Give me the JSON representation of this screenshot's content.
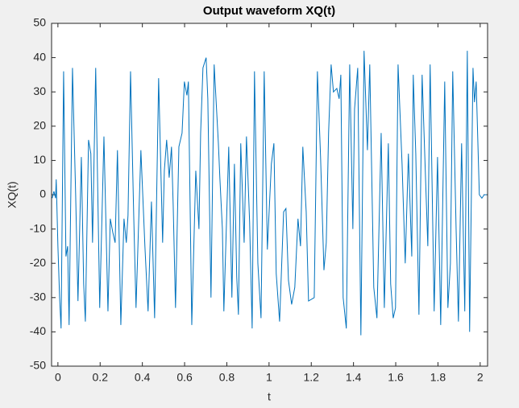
{
  "chart_data": {
    "type": "line",
    "title": "Output waveform XQ(t)",
    "x_label": "t",
    "y_label": "XQ(t)",
    "xlim": [
      -0.03,
      2.035
    ],
    "ylim": [
      -50,
      50
    ],
    "xticks": [
      0,
      0.2,
      0.4,
      0.6,
      0.8,
      1,
      1.2,
      1.4,
      1.6,
      1.8,
      2
    ],
    "yticks": [
      -50,
      -40,
      -30,
      -20,
      -10,
      0,
      10,
      20,
      30,
      40,
      50
    ],
    "grid": false,
    "x": [
      -0.027,
      -0.019,
      -0.011,
      -0.008,
      0,
      0.008,
      0.015,
      0.027,
      0.038,
      0.046,
      0.053,
      0.069,
      0.084,
      0.095,
      0.111,
      0.122,
      0.13,
      0.145,
      0.156,
      0.164,
      0.179,
      0.198,
      0.218,
      0.237,
      0.248,
      0.26,
      0.271,
      0.282,
      0.298,
      0.313,
      0.324,
      0.332,
      0.344,
      0.359,
      0.37,
      0.393,
      0.412,
      0.427,
      0.443,
      0.458,
      0.477,
      0.496,
      0.504,
      0.515,
      0.527,
      0.538,
      0.546,
      0.557,
      0.573,
      0.588,
      0.599,
      0.611,
      0.618,
      0.634,
      0.653,
      0.668,
      0.676,
      0.687,
      0.702,
      0.71,
      0.725,
      0.74,
      0.76,
      0.767,
      0.779,
      0.786,
      0.809,
      0.824,
      0.836,
      0.847,
      0.855,
      0.866,
      0.882,
      0.893,
      0.908,
      0.92,
      0.931,
      0.947,
      0.962,
      0.977,
      0.992,
      1.011,
      1.023,
      1.034,
      1.05,
      1.069,
      1.08,
      1.092,
      1.107,
      1.122,
      1.137,
      1.149,
      1.16,
      1.176,
      1.187,
      1.214,
      1.229,
      1.244,
      1.26,
      1.271,
      1.282,
      1.294,
      1.305,
      1.321,
      1.332,
      1.34,
      1.351,
      1.366,
      1.382,
      1.397,
      1.405,
      1.42,
      1.435,
      1.45,
      1.466,
      1.477,
      1.496,
      1.511,
      1.531,
      1.546,
      1.565,
      1.576,
      1.588,
      1.599,
      1.611,
      1.63,
      1.645,
      1.66,
      1.676,
      1.683,
      1.695,
      1.71,
      1.725,
      1.74,
      1.752,
      1.763,
      1.782,
      1.798,
      1.813,
      1.832,
      1.847,
      1.859,
      1.87,
      1.886,
      1.897,
      1.912,
      1.927,
      1.939,
      1.95,
      1.966,
      1.973,
      1.981,
      1.996,
      2.008,
      2.019,
      2.031
    ],
    "series": [
      {
        "name": "XQ(t)",
        "color": "#0072bd",
        "values": [
          -1,
          1,
          -1,
          4.5,
          -15,
          -30,
          -39,
          36,
          -18,
          -15,
          -38,
          37,
          0,
          -31,
          11,
          -26,
          -37,
          16,
          12,
          -14,
          37,
          -33,
          17,
          -34,
          -7,
          -11,
          -14,
          13,
          -38,
          -7,
          -14,
          -6,
          36,
          -6,
          -33,
          13,
          -15,
          -34,
          -2,
          -36,
          34,
          -14,
          7,
          16,
          5,
          14,
          -3,
          -33,
          14,
          18,
          33,
          29,
          33,
          -38,
          7,
          -10,
          18,
          37,
          40,
          28,
          -30,
          38,
          15,
          5,
          -10,
          -34,
          14,
          -30,
          9,
          -24,
          -35,
          15,
          -14,
          17,
          -8,
          -39,
          36,
          -20,
          -36,
          36,
          -16,
          9,
          15,
          -23,
          -37,
          -5,
          -4,
          -25,
          -32,
          -27,
          -7,
          -15,
          14,
          -5,
          -31,
          -30,
          36,
          11,
          -22,
          -14,
          18,
          38,
          30,
          31,
          28,
          35,
          -30,
          -39,
          38,
          -10,
          25,
          37,
          -41,
          42,
          13,
          38,
          -27,
          -36,
          18,
          -33,
          15,
          -26,
          -36,
          -33,
          38,
          9,
          -20,
          12,
          -18,
          35,
          12,
          -35,
          35,
          7,
          -15,
          38,
          -34,
          11,
          -38,
          33,
          -33,
          -20,
          36,
          -10,
          -37,
          15,
          -34,
          42,
          -40,
          37,
          27,
          33,
          0,
          -1,
          0,
          0
        ]
      }
    ]
  }
}
